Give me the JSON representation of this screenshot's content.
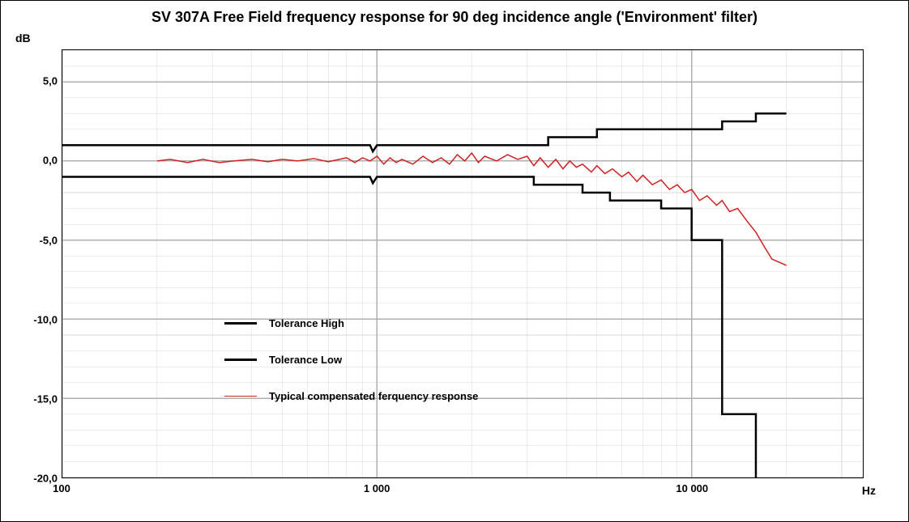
{
  "chart": {
    "type": "line",
    "title": "SV 307A Free Field frequency response for 90 deg incidence angle ('Environment' filter)",
    "title_fontsize": 18,
    "title_fontweight": "bold",
    "y_axis": {
      "label": "dB",
      "min": -20,
      "max": 7,
      "major_step": 5,
      "minor_step": 1,
      "ticks": [
        5.0,
        0.0,
        -5.0,
        -10.0,
        -15.0,
        -20.0
      ],
      "tick_labels": [
        "5,0",
        "0,0",
        "-5,0",
        "-10,0",
        "-15,0",
        "-20,0"
      ]
    },
    "x_axis": {
      "label": "Hz",
      "scale": "log",
      "min": 100,
      "max": 35000,
      "ticks": [
        100,
        1000,
        10000
      ],
      "tick_labels": [
        "100",
        "1 000",
        "10 000"
      ]
    },
    "grid": {
      "major_color": "#b0b0b0",
      "minor_color": "#d8d8d8",
      "major_width": 1,
      "minor_width": 0.5
    },
    "background_color": "#ffffff",
    "border_color": "#000000",
    "series": [
      {
        "name": "Tolerance High",
        "color": "#000000",
        "width": 2.5,
        "points": [
          [
            100,
            1.0
          ],
          [
            950,
            1.0
          ],
          [
            970,
            0.6
          ],
          [
            1000,
            1.0
          ],
          [
            1050,
            1.0
          ],
          [
            3500,
            1.0
          ],
          [
            3500,
            1.5
          ],
          [
            5000,
            1.5
          ],
          [
            5000,
            2.0
          ],
          [
            12500,
            2.0
          ],
          [
            12500,
            2.5
          ],
          [
            16000,
            2.5
          ],
          [
            16000,
            3.0
          ],
          [
            20000,
            3.0
          ]
        ]
      },
      {
        "name": "Tolerance Low",
        "color": "#000000",
        "width": 2.5,
        "points": [
          [
            100,
            -1.0
          ],
          [
            950,
            -1.0
          ],
          [
            970,
            -1.4
          ],
          [
            1000,
            -1.0
          ],
          [
            1050,
            -1.0
          ],
          [
            3150,
            -1.0
          ],
          [
            3150,
            -1.5
          ],
          [
            4500,
            -1.5
          ],
          [
            4500,
            -2.0
          ],
          [
            5500,
            -2.0
          ],
          [
            5500,
            -2.5
          ],
          [
            8000,
            -2.5
          ],
          [
            8000,
            -3.0
          ],
          [
            10000,
            -3.0
          ],
          [
            10000,
            -5.0
          ],
          [
            12500,
            -5.0
          ],
          [
            12500,
            -16.0
          ],
          [
            16000,
            -16.0
          ],
          [
            16000,
            -40.0
          ]
        ]
      },
      {
        "name": "Typical compensated ferquency response",
        "color": "#d02020",
        "width": 1.5,
        "points": [
          [
            200,
            0.0
          ],
          [
            220,
            0.1
          ],
          [
            250,
            -0.1
          ],
          [
            280,
            0.1
          ],
          [
            315,
            -0.1
          ],
          [
            350,
            0.0
          ],
          [
            400,
            0.1
          ],
          [
            450,
            -0.05
          ],
          [
            500,
            0.1
          ],
          [
            560,
            0.0
          ],
          [
            630,
            0.15
          ],
          [
            700,
            -0.05
          ],
          [
            800,
            0.2
          ],
          [
            850,
            -0.1
          ],
          [
            900,
            0.2
          ],
          [
            950,
            0.0
          ],
          [
            1000,
            0.3
          ],
          [
            1050,
            -0.2
          ],
          [
            1100,
            0.2
          ],
          [
            1150,
            -0.1
          ],
          [
            1200,
            0.1
          ],
          [
            1300,
            -0.2
          ],
          [
            1400,
            0.3
          ],
          [
            1500,
            -0.1
          ],
          [
            1600,
            0.2
          ],
          [
            1700,
            -0.2
          ],
          [
            1800,
            0.4
          ],
          [
            1900,
            0.0
          ],
          [
            2000,
            0.5
          ],
          [
            2100,
            -0.1
          ],
          [
            2200,
            0.3
          ],
          [
            2400,
            0.0
          ],
          [
            2600,
            0.4
          ],
          [
            2800,
            0.1
          ],
          [
            3000,
            0.3
          ],
          [
            3150,
            -0.3
          ],
          [
            3300,
            0.2
          ],
          [
            3500,
            -0.4
          ],
          [
            3700,
            0.1
          ],
          [
            3900,
            -0.5
          ],
          [
            4100,
            0.0
          ],
          [
            4300,
            -0.4
          ],
          [
            4500,
            -0.2
          ],
          [
            4800,
            -0.7
          ],
          [
            5000,
            -0.3
          ],
          [
            5300,
            -0.8
          ],
          [
            5600,
            -0.5
          ],
          [
            6000,
            -1.0
          ],
          [
            6300,
            -0.7
          ],
          [
            6700,
            -1.3
          ],
          [
            7000,
            -0.9
          ],
          [
            7500,
            -1.5
          ],
          [
            8000,
            -1.2
          ],
          [
            8500,
            -1.8
          ],
          [
            9000,
            -1.5
          ],
          [
            9500,
            -2.0
          ],
          [
            10000,
            -1.8
          ],
          [
            10600,
            -2.5
          ],
          [
            11200,
            -2.2
          ],
          [
            12000,
            -2.8
          ],
          [
            12500,
            -2.5
          ],
          [
            13200,
            -3.2
          ],
          [
            14000,
            -3.0
          ],
          [
            15000,
            -3.8
          ],
          [
            16000,
            -4.5
          ],
          [
            17000,
            -5.4
          ],
          [
            18000,
            -6.2
          ],
          [
            19000,
            -6.4
          ],
          [
            20000,
            -6.6
          ]
        ]
      }
    ],
    "legend": {
      "position": "inside-left",
      "items": [
        {
          "label": "Tolerance High",
          "color": "#000000",
          "width": 2.5
        },
        {
          "label": "Tolerance Low",
          "color": "#000000",
          "width": 2.5
        },
        {
          "label": "Typical compensated ferquency response",
          "color": "#d02020",
          "width": 1.5
        }
      ]
    }
  }
}
